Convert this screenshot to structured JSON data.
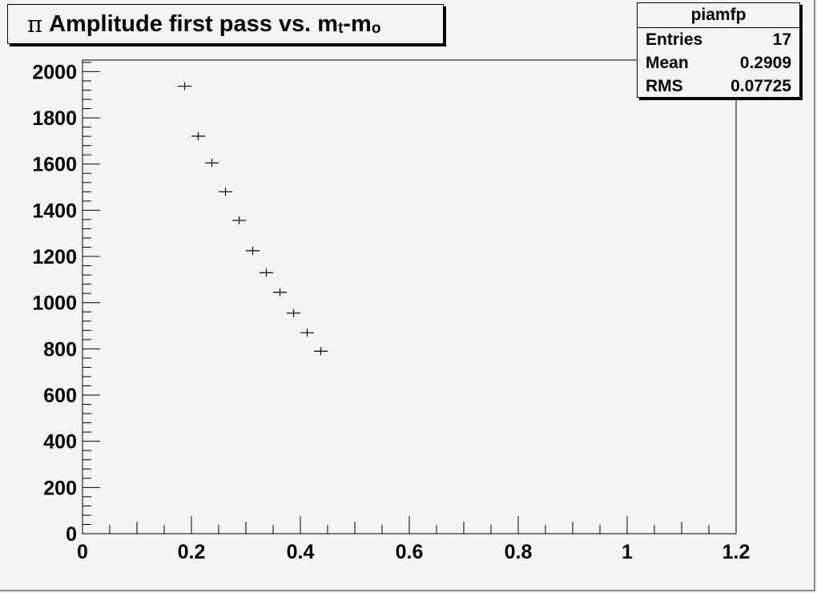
{
  "title": {
    "symbol": "π",
    "text": "Amplitude first pass vs. m",
    "sub1": "t",
    "mid": "-m",
    "sub2": "o"
  },
  "stats": {
    "name": "piamfp",
    "rows": [
      {
        "label": "Entries",
        "value": "17"
      },
      {
        "label": "Mean",
        "value": "0.2909"
      },
      {
        "label": "RMS",
        "value": "0.07725"
      }
    ]
  },
  "chart_data": {
    "type": "scatter",
    "title": "π Amplitude first pass vs. m_t-m_o",
    "xlabel": "",
    "ylabel": "",
    "xlim": [
      0,
      1.2
    ],
    "ylim": [
      0,
      2050
    ],
    "xticks": [
      "0",
      "0.2",
      "0.4",
      "0.6",
      "0.8",
      "1",
      "1.2"
    ],
    "yticks": [
      "0",
      "200",
      "400",
      "600",
      "800",
      "1000",
      "1200",
      "1400",
      "1600",
      "1800",
      "2000"
    ],
    "grid": false,
    "x_error": 0.0125,
    "points": [
      {
        "x": 0.1875,
        "y": 1937
      },
      {
        "x": 0.2125,
        "y": 1721
      },
      {
        "x": 0.2375,
        "y": 1605
      },
      {
        "x": 0.2625,
        "y": 1480
      },
      {
        "x": 0.2875,
        "y": 1356
      },
      {
        "x": 0.3125,
        "y": 1225
      },
      {
        "x": 0.3375,
        "y": 1130
      },
      {
        "x": 0.3625,
        "y": 1045
      },
      {
        "x": 0.3875,
        "y": 955
      },
      {
        "x": 0.4125,
        "y": 870
      },
      {
        "x": 0.4375,
        "y": 790
      }
    ],
    "colors": {
      "background": "#f4f4f4",
      "marker": "#000000",
      "axis": "#000000"
    }
  }
}
